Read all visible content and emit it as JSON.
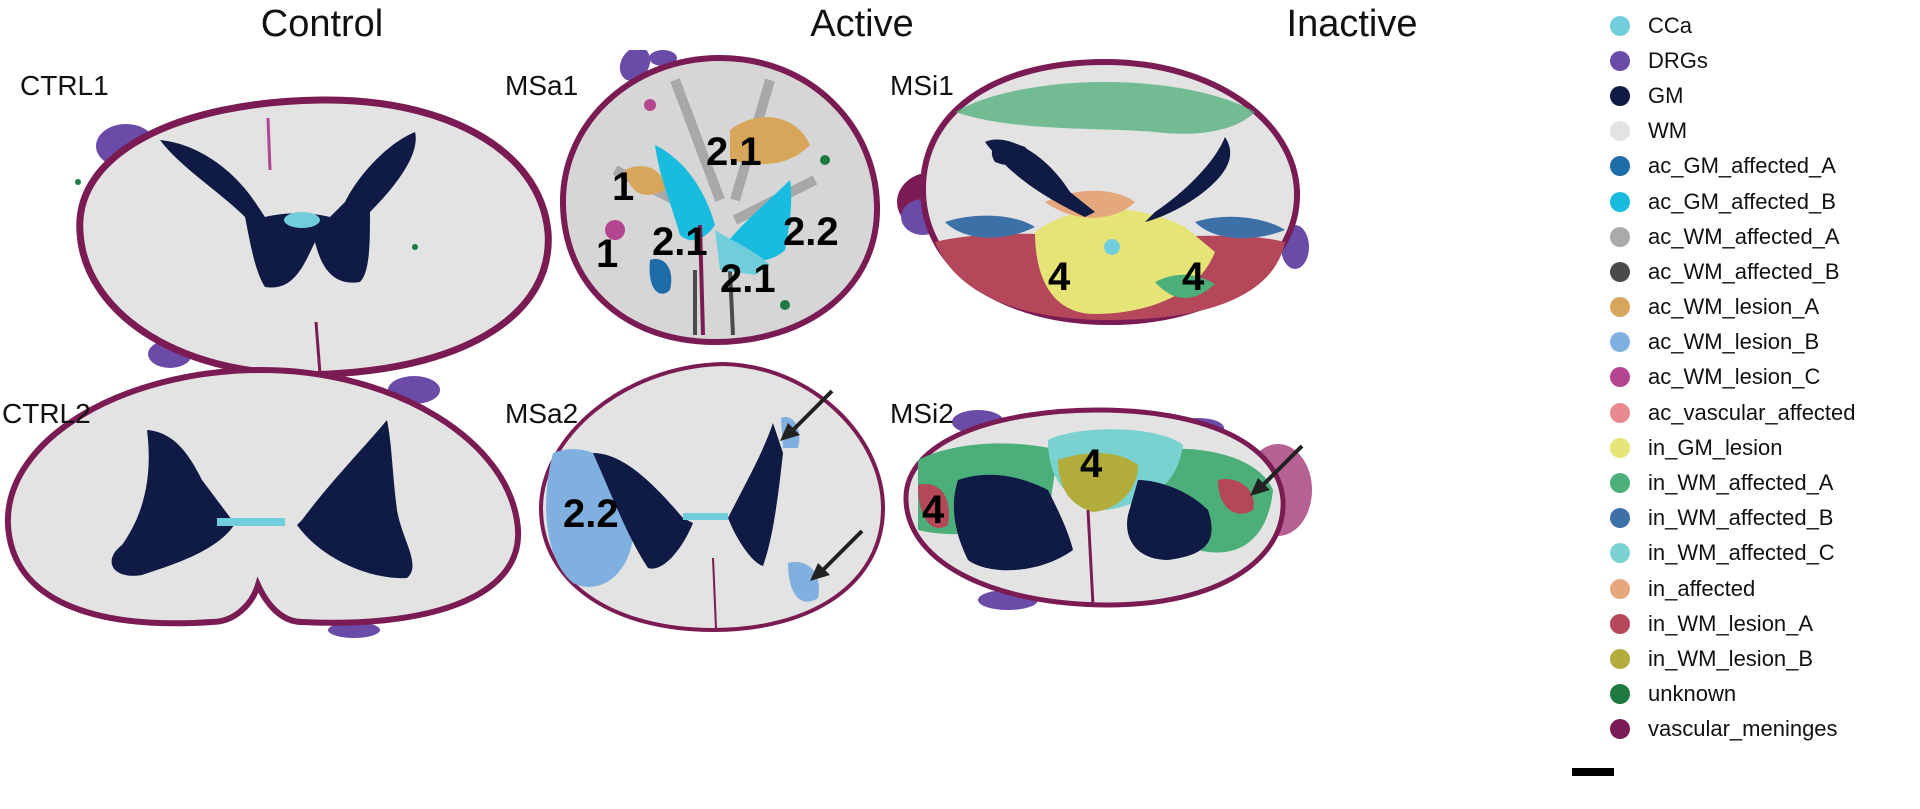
{
  "column_headers": [
    "Control",
    "Active",
    "Inactive"
  ],
  "samples": [
    "CTRL1",
    "CTRL2",
    "MSa1",
    "MSa2",
    "MSi1",
    "MSi2"
  ],
  "region_labels": {
    "msa1": [
      "1",
      "2.1",
      "1",
      "2.1",
      "2.2",
      "2.1"
    ],
    "msa2": [
      "2.2"
    ],
    "msi1": [
      "4",
      "4"
    ],
    "msi2": [
      "4",
      "4"
    ]
  },
  "legend": [
    {
      "label": "CCa",
      "color": "#6FCDDC"
    },
    {
      "label": "DRGs",
      "color": "#6B4BA8"
    },
    {
      "label": "GM",
      "color": "#0F1A45"
    },
    {
      "label": "WM",
      "color": "#E3E3E3"
    },
    {
      "label": "ac_GM_affected_A",
      "color": "#1F6DA8"
    },
    {
      "label": "ac_GM_affected_B",
      "color": "#19BCDF"
    },
    {
      "label": "ac_WM_affected_A",
      "color": "#AAAAAA"
    },
    {
      "label": "ac_WM_affected_B",
      "color": "#4A4A4A"
    },
    {
      "label": "ac_WM_lesion_A",
      "color": "#D8A65A"
    },
    {
      "label": "ac_WM_lesion_B",
      "color": "#7FB0DF"
    },
    {
      "label": "ac_WM_lesion_C",
      "color": "#B4468F"
    },
    {
      "label": "ac_vascular_affected",
      "color": "#E8898F"
    },
    {
      "label": "in_GM_lesion",
      "color": "#E6E377"
    },
    {
      "label": "in_WM_affected_A",
      "color": "#4CAE78"
    },
    {
      "label": "in_WM_affected_B",
      "color": "#3E70A8"
    },
    {
      "label": "in_WM_affected_C",
      "color": "#79D2CF"
    },
    {
      "label": "in_affected",
      "color": "#E5A87C"
    },
    {
      "label": "in_WM_lesion_A",
      "color": "#B5475A"
    },
    {
      "label": "in_WM_lesion_B",
      "color": "#B2AC3A"
    },
    {
      "label": "unknown",
      "color": "#1E7A40"
    },
    {
      "label": "vascular_meninges",
      "color": "#7A1B53"
    }
  ]
}
